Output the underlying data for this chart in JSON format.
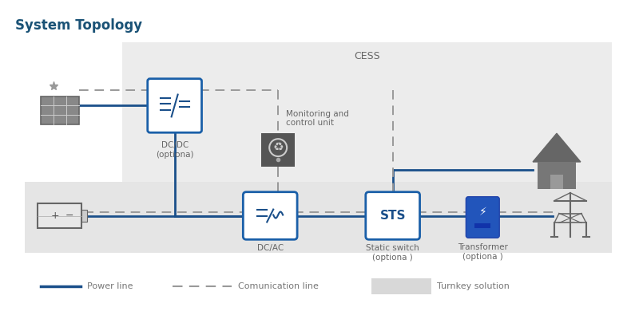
{
  "title": "System Topology",
  "title_color": "#1a5276",
  "title_fontsize": 12,
  "box_color": "#1a5fa8",
  "box_fill": "#ffffff",
  "box_edge": "#1a5fa8",
  "line_color": "#1a4f8a",
  "dash_color": "#999999",
  "text_color": "#666666",
  "sts_text": "STS",
  "dcdc_label": "DC/DC\n(optiona)",
  "dcac_label": "DC/AC",
  "cess_label": "CESS",
  "monitor_text": "Monitoring and\ncontrol unit",
  "switch_text": "Static switch\n(optiona )",
  "transformer_text": "Transformer\n(optiona )",
  "legend_power": "Power line",
  "legend_comm": "Comunication line",
  "legend_turnkey": "Turnkey solution",
  "cess_bg": "#ececec",
  "lower_bg": "#e5e5e5",
  "fig_bg": "#ffffff"
}
